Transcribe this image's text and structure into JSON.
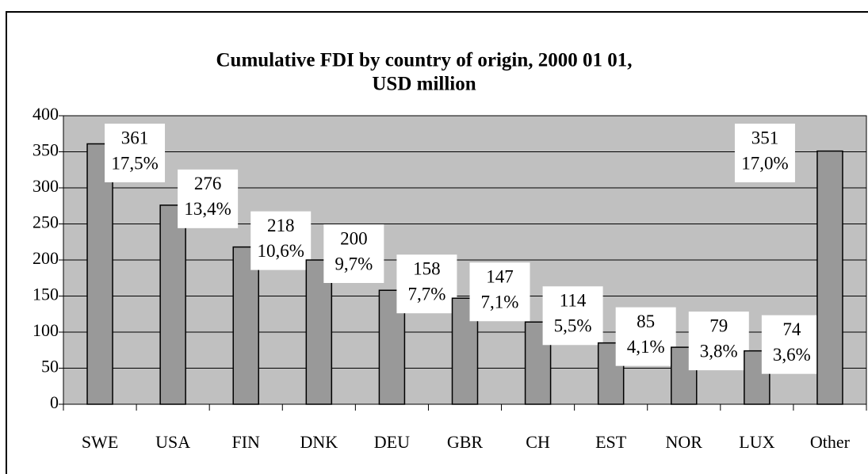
{
  "chart_data": {
    "type": "bar",
    "title": "Cumulative FDI by country of origin, 2000 01 01,",
    "subtitle": "USD million",
    "categories": [
      "SWE",
      "USA",
      "FIN",
      "DNK",
      "DEU",
      "GBR",
      "CH",
      "EST",
      "NOR",
      "LUX",
      "Other"
    ],
    "values": [
      361,
      276,
      218,
      200,
      158,
      147,
      114,
      85,
      79,
      74,
      351
    ],
    "share_labels": [
      "17,5%",
      "13,4%",
      "10,6%",
      "9,7%",
      "7,7%",
      "7,1%",
      "5,5%",
      "4,1%",
      "3,8%",
      "3,6%",
      "17,0%"
    ],
    "color": "#999999",
    "plot_background": "#c0c0c0",
    "ylim": [
      0,
      400
    ],
    "yticks": [
      0,
      50,
      100,
      150,
      200,
      250,
      300,
      350,
      400
    ],
    "grid": true
  }
}
